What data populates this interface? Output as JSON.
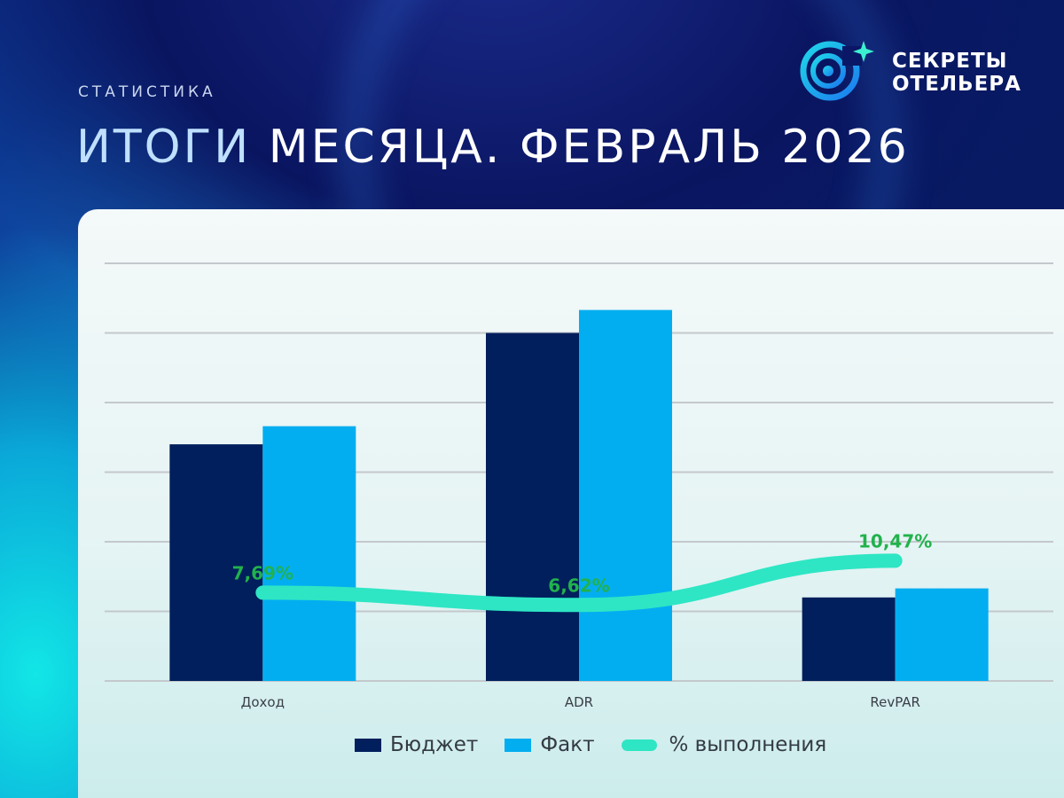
{
  "header": {
    "kicker": "СТАТИСТИКА",
    "title_part1": "ИТОГИ",
    "title_part2": "МЕСЯЦА. ФЕВРАЛЬ 2026"
  },
  "logo": {
    "line1": "СЕКРЕТЫ",
    "line2": "ОТЕЛЬЕРА",
    "icon": "orbit-star-icon"
  },
  "colors": {
    "budget": "#001f5c",
    "fact": "#03aef0",
    "completion": "#2ee6c4",
    "completion_label": "#22b24c",
    "grid": "#c4c8cc"
  },
  "chart_data": {
    "type": "bar",
    "categories": [
      "Доход",
      "ADR",
      "RevPAR"
    ],
    "series": [
      {
        "name": "Бюджет",
        "values": [
          3.4,
          5.0,
          1.2
        ]
      },
      {
        "name": "Факт",
        "values": [
          3.66,
          5.33,
          1.33
        ]
      },
      {
        "name": "% выполнения",
        "type": "line",
        "values": [
          7.69,
          6.62,
          10.47
        ],
        "labels": [
          "7,69%",
          "6,62%",
          "10,47%"
        ]
      }
    ],
    "ylim": [
      0,
      6
    ],
    "y_tick_labels_visible": false,
    "grid": true,
    "legend_position": "bottom"
  }
}
